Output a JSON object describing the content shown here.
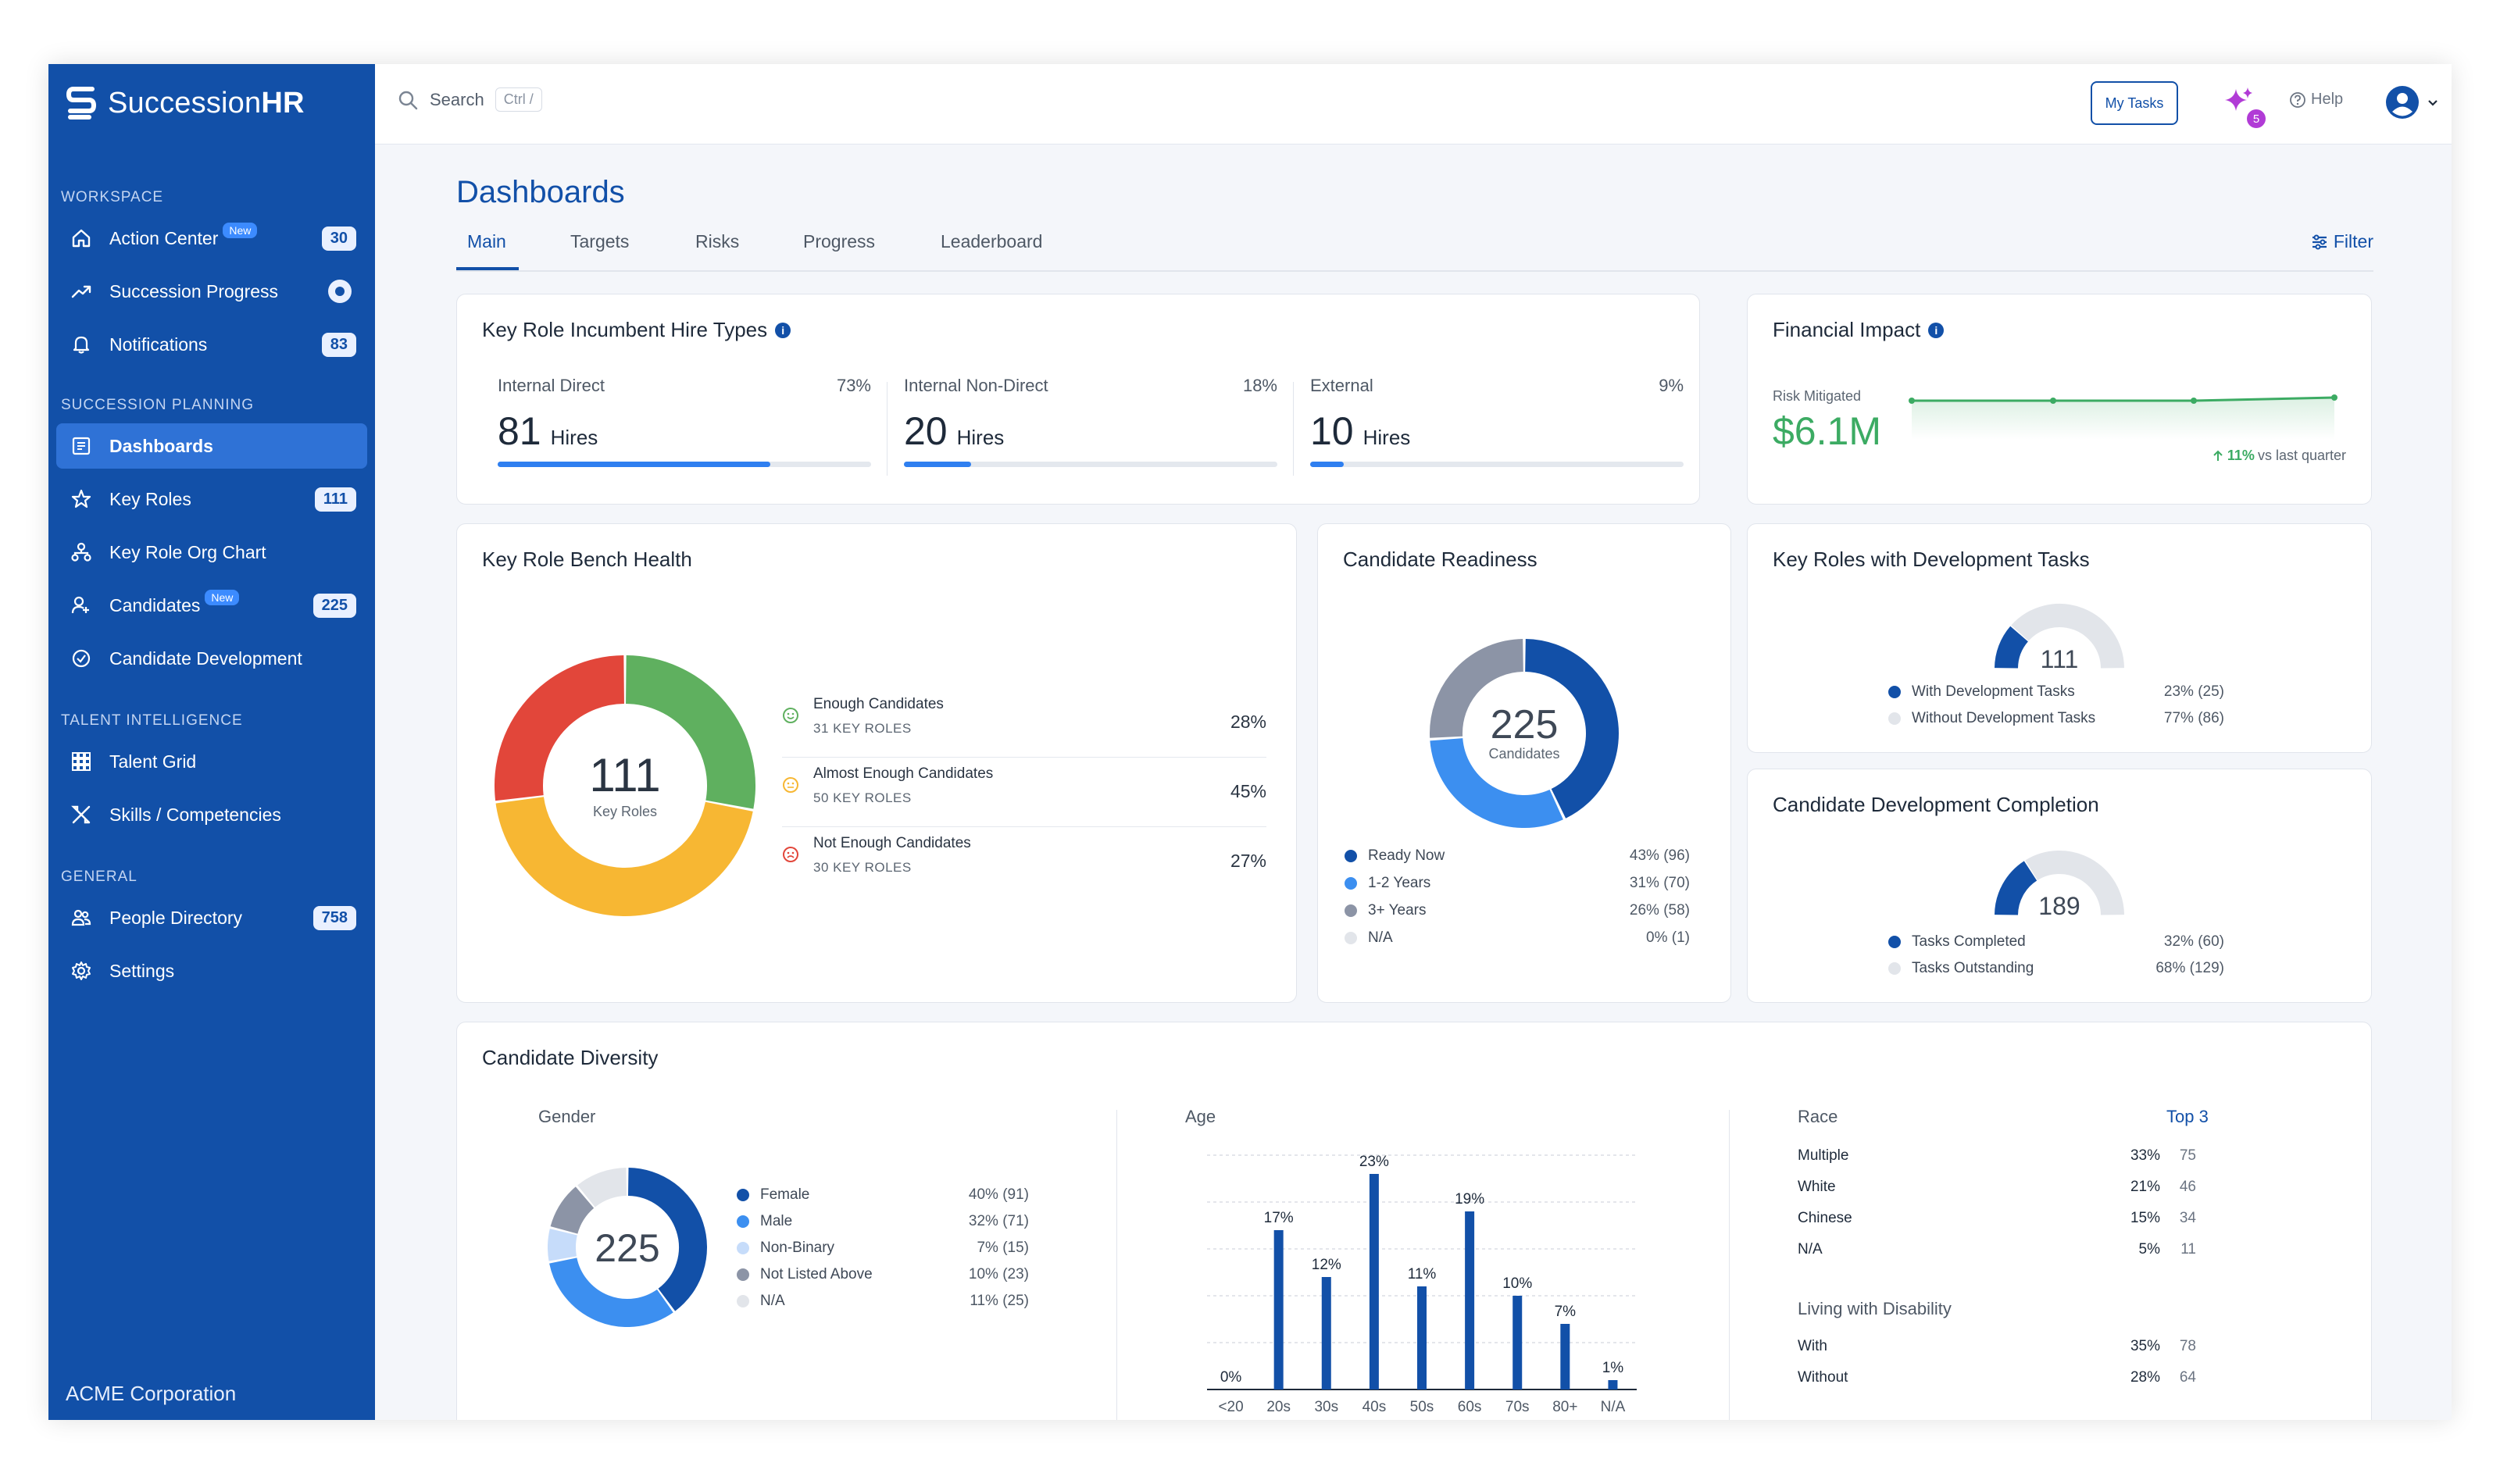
{
  "app": {
    "brand_light": "Succession",
    "brand_bold": "HR",
    "org": "ACME Corporation"
  },
  "topbar": {
    "search_placeholder": "Search",
    "shortcut": "Ctrl /",
    "my_tasks": "My Tasks",
    "spark_count": "5",
    "help": "Help"
  },
  "sidebar": {
    "sections": [
      "WORKSPACE",
      "SUCCESSION PLANNING",
      "TALENT INTELLIGENCE",
      "GENERAL"
    ],
    "items": [
      {
        "label": "Action Center",
        "tag": "New",
        "count": "30",
        "icon": "home-icon"
      },
      {
        "label": "Succession Progress",
        "icon": "trend-icon"
      },
      {
        "label": "Notifications",
        "count": "83",
        "icon": "bell-icon"
      },
      {
        "label": "Dashboards",
        "icon": "dashboard-icon",
        "active": true
      },
      {
        "label": "Key Roles",
        "count": "111",
        "icon": "star-icon"
      },
      {
        "label": "Key Role Org Chart",
        "icon": "org-chart-icon"
      },
      {
        "label": "Candidates",
        "tag": "New",
        "count": "225",
        "icon": "candidates-icon"
      },
      {
        "label": "Candidate Development",
        "icon": "check-circle-icon"
      },
      {
        "label": "Talent Grid",
        "icon": "grid-icon"
      },
      {
        "label": "Skills / Competencies",
        "icon": "tools-icon"
      },
      {
        "label": "People Directory",
        "count": "758",
        "icon": "people-icon"
      },
      {
        "label": "Settings",
        "icon": "gear-icon"
      }
    ]
  },
  "page": {
    "title": "Dashboards",
    "tabs": [
      "Main",
      "Targets",
      "Risks",
      "Progress",
      "Leaderboard"
    ],
    "filter": "Filter"
  },
  "hire_types": {
    "title": "Key Role Incumbent Hire Types",
    "items": [
      {
        "label": "Internal Direct",
        "pct": "73%",
        "value": "81",
        "unit": "Hires",
        "fill": 0.73
      },
      {
        "label": "Internal Non-Direct",
        "pct": "18%",
        "value": "20",
        "unit": "Hires",
        "fill": 0.18
      },
      {
        "label": "External",
        "pct": "9%",
        "value": "10",
        "unit": "Hires",
        "fill": 0.09
      }
    ]
  },
  "financial": {
    "title": "Financial Impact",
    "label": "Risk Mitigated",
    "value": "$6.1M",
    "change": "11%",
    "change_text": "vs last quarter"
  },
  "bench": {
    "title": "Key Role Bench Health",
    "center_value": "111",
    "center_label": "Key Roles",
    "rows": [
      {
        "label": "Enough Candidates",
        "sub": "31 KEY ROLES",
        "pct": "28%",
        "color": "#5fb05f"
      },
      {
        "label": "Almost Enough Candidates",
        "sub": "50 KEY ROLES",
        "pct": "45%",
        "color": "#f7b733"
      },
      {
        "label": "Not Enough Candidates",
        "sub": "30 KEY ROLES",
        "pct": "27%",
        "color": "#e2463a"
      }
    ]
  },
  "readiness": {
    "title": "Candidate Readiness",
    "center_value": "225",
    "center_label": "Candidates",
    "rows": [
      {
        "label": "Ready Now",
        "value": "43% (96)",
        "color": "#1250a8",
        "frac": 0.43
      },
      {
        "label": "1-2 Years",
        "value": "31% (70)",
        "color": "#3c8ff0",
        "frac": 0.31
      },
      {
        "label": "3+ Years",
        "value": "26% (58)",
        "color": "#8c94a6",
        "frac": 0.26
      },
      {
        "label": "N/A",
        "value": "0% (1)",
        "color": "#e2e5ea",
        "frac": 0.0
      }
    ]
  },
  "dev_tasks": {
    "title": "Key Roles with Development Tasks",
    "center_value": "111",
    "rows": [
      {
        "label": "With Development Tasks",
        "value": "23% (25)",
        "color": "#1250a8",
        "frac": 0.23
      },
      {
        "label": "Without Development Tasks",
        "value": "77% (86)",
        "color": "#e2e5ea",
        "frac": 0.77
      }
    ]
  },
  "dev_completion": {
    "title": "Candidate Development Completion",
    "center_value": "189",
    "rows": [
      {
        "label": "Tasks Completed",
        "value": "32% (60)",
        "color": "#1250a8",
        "frac": 0.32
      },
      {
        "label": "Tasks Outstanding",
        "value": "68% (129)",
        "color": "#e2e5ea",
        "frac": 0.68
      }
    ]
  },
  "diversity": {
    "title": "Candidate Diversity",
    "gender": {
      "title": "Gender",
      "center_value": "225",
      "rows": [
        {
          "label": "Female",
          "value": "40% (91)",
          "color": "#1250a8",
          "frac": 0.4
        },
        {
          "label": "Male",
          "value": "32% (71)",
          "color": "#3c8ff0",
          "frac": 0.32
        },
        {
          "label": "Non-Binary",
          "value": "7% (15)",
          "color": "#c6dcfa",
          "frac": 0.07
        },
        {
          "label": "Not Listed Above",
          "value": "10% (23)",
          "color": "#8c94a6",
          "frac": 0.1
        },
        {
          "label": "N/A",
          "value": "11% (25)",
          "color": "#e2e5ea",
          "frac": 0.11
        }
      ]
    },
    "age_title": "Age",
    "race": {
      "title": "Race",
      "top_link": "Top 3",
      "rows": [
        {
          "label": "Multiple",
          "pct": "33%",
          "count": "75"
        },
        {
          "label": "White",
          "pct": "21%",
          "count": "46"
        },
        {
          "label": "Chinese",
          "pct": "15%",
          "count": "34"
        },
        {
          "label": "N/A",
          "pct": "5%",
          "count": "11"
        }
      ]
    },
    "disability": {
      "title": "Living with Disability",
      "rows": [
        {
          "label": "With",
          "pct": "35%",
          "count": "78"
        },
        {
          "label": "Without",
          "pct": "28%",
          "count": "64"
        }
      ]
    }
  },
  "chart_data": {
    "type": "bar",
    "categories": [
      "<20",
      "20s",
      "30s",
      "40s",
      "50s",
      "60s",
      "70s",
      "80+",
      "N/A"
    ],
    "values": [
      0,
      17,
      12,
      23,
      11,
      19,
      10,
      7,
      1
    ],
    "labels": [
      "0%",
      "17%",
      "12%",
      "23%",
      "11%",
      "19%",
      "10%",
      "7%",
      "1%"
    ],
    "title": "Age",
    "ylim": [
      0,
      25
    ],
    "grid": true,
    "color": "#1250a8"
  }
}
